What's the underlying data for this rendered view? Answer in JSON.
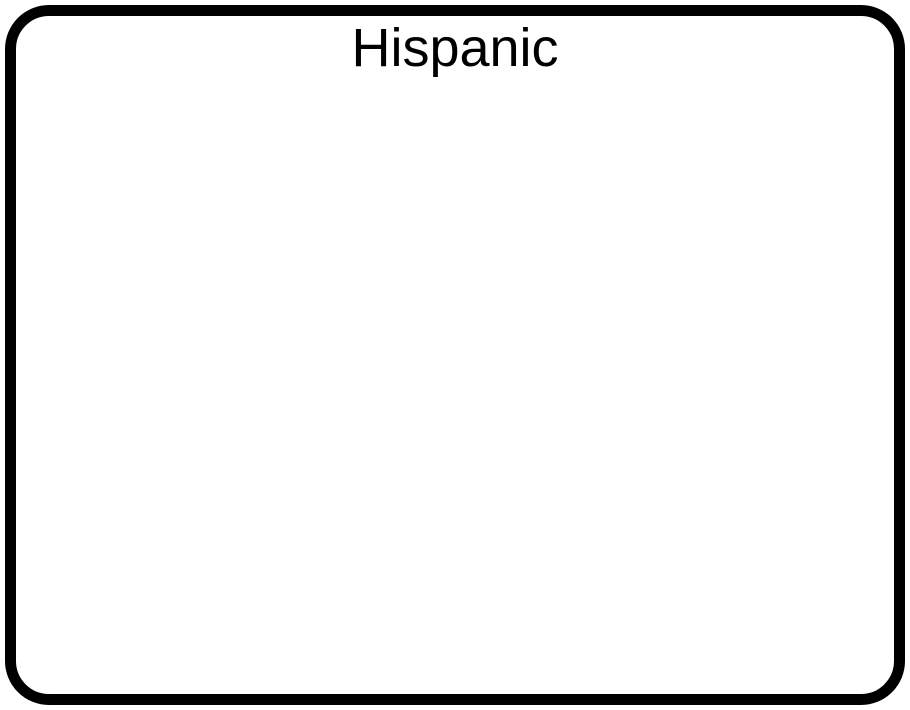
{
  "box": {
    "title": "Hispanic",
    "border_color": "#000000",
    "background_color": "#ffffff"
  }
}
